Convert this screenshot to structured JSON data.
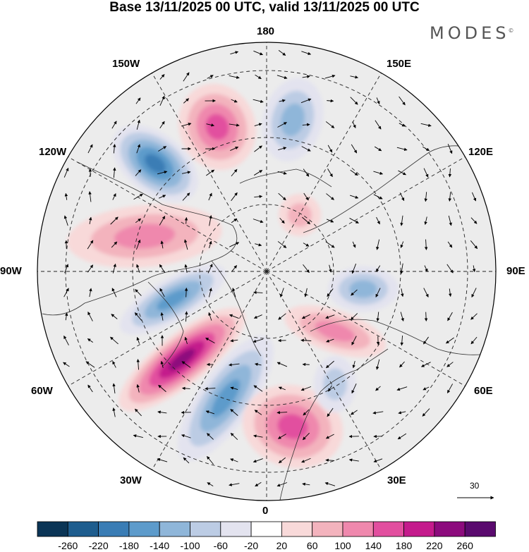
{
  "header": {
    "title": "Base 13/11/2025 00 UTC, valid 13/11/2025 00 UTC",
    "logo": "MODES",
    "logo_mark": "©"
  },
  "map": {
    "projection": "north-polar-stereographic",
    "longitude_labels": {
      "deg180": "180",
      "w150": "150W",
      "e150": "150E",
      "w120": "120W",
      "e120": "120E",
      "w90": "90W",
      "e90": "90E",
      "w60": "60W",
      "e60": "60E",
      "w30": "30W",
      "e30": "30E",
      "deg0": "0"
    },
    "anomaly_centers": [
      {
        "id": "ne-pacific-low",
        "sign": "negative",
        "value": -200
      },
      {
        "id": "bering-high",
        "sign": "positive",
        "value": 160
      },
      {
        "id": "chukchi-low",
        "sign": "negative",
        "value": -120
      },
      {
        "id": "canada-high",
        "sign": "positive",
        "value": 130
      },
      {
        "id": "hudson-low",
        "sign": "negative",
        "value": -160
      },
      {
        "id": "labrador-high",
        "sign": "positive",
        "value": 230
      },
      {
        "id": "n-atlantic-low",
        "sign": "negative",
        "value": -140
      },
      {
        "id": "europe-high",
        "sign": "positive",
        "value": 150
      },
      {
        "id": "kara-high",
        "sign": "positive",
        "value": 110
      },
      {
        "id": "siberia-low",
        "sign": "negative",
        "value": -130
      },
      {
        "id": "laptev-high",
        "sign": "positive",
        "value": 80
      },
      {
        "id": "central-asia-low",
        "sign": "negative",
        "value": -80
      }
    ]
  },
  "reference_vector": {
    "label": "30"
  },
  "colorbar": {
    "tick_labels": [
      "-260",
      "-220",
      "-180",
      "-140",
      "-100",
      "-60",
      "-20",
      "20",
      "60",
      "100",
      "140",
      "180",
      "220",
      "260"
    ],
    "colors": [
      "#0b3556",
      "#1e5d8e",
      "#3a7db5",
      "#5d9bcb",
      "#8fb6d9",
      "#bccce4",
      "#e3e3ef",
      "#ffffff",
      "#f8d9d9",
      "#f3b3bd",
      "#ef88ad",
      "#e24f9f",
      "#c41b8c",
      "#8c0b7d",
      "#5a0a6e"
    ]
  }
}
